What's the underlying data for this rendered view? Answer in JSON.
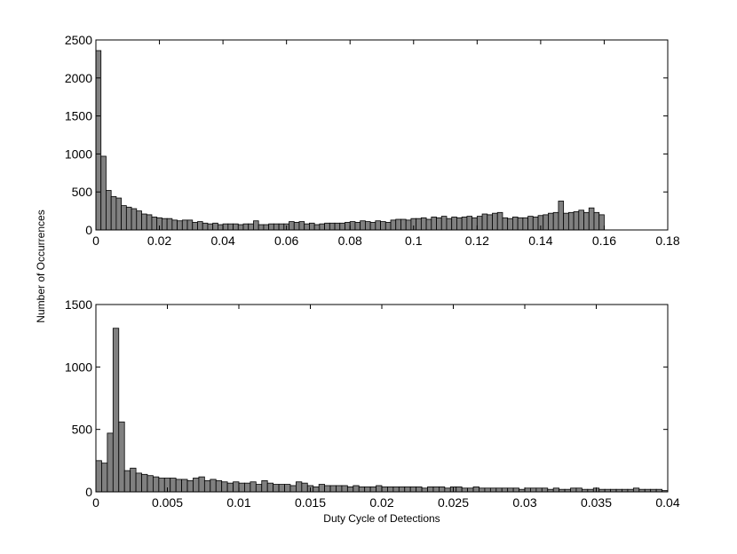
{
  "chart_data": [
    {
      "type": "histogram",
      "bins": [
        0,
        0.0016,
        0.0032,
        0.0048,
        0.0064,
        0.008,
        0.0096,
        0.0112,
        0.0128,
        0.0144,
        0.016,
        0.0176,
        0.0192,
        0.0208,
        0.0224,
        0.024,
        0.0256,
        0.0272,
        0.0288,
        0.0304,
        0.032,
        0.0336,
        0.0352,
        0.0368,
        0.0384,
        0.04,
        0.0416,
        0.0432,
        0.0448,
        0.0464,
        0.048,
        0.0496,
        0.0512,
        0.0528,
        0.0544,
        0.056,
        0.0576,
        0.0592,
        0.0608,
        0.0624,
        0.064,
        0.0656,
        0.0672,
        0.0688,
        0.0704,
        0.072,
        0.0736,
        0.0752,
        0.0768,
        0.0784,
        0.08,
        0.0816,
        0.0832,
        0.0848,
        0.0864,
        0.088,
        0.0896,
        0.0912,
        0.0928,
        0.0944,
        0.096,
        0.0976,
        0.0992,
        0.1008,
        0.1024,
        0.104,
        0.1056,
        0.1072,
        0.1088,
        0.1104,
        0.112,
        0.1136,
        0.1152,
        0.1168,
        0.1184,
        0.12,
        0.1216,
        0.1232,
        0.1248,
        0.1264,
        0.128,
        0.1296,
        0.1312,
        0.1328,
        0.1344,
        0.136,
        0.1376,
        0.1392,
        0.1408,
        0.1424,
        0.144,
        0.1456,
        0.1472,
        0.1488,
        0.1504,
        0.152,
        0.1536,
        0.1552,
        0.1568,
        0.1584,
        0.16
      ],
      "values": [
        2360,
        970,
        520,
        440,
        420,
        320,
        300,
        280,
        250,
        210,
        200,
        170,
        160,
        150,
        150,
        130,
        120,
        130,
        130,
        100,
        110,
        90,
        80,
        90,
        70,
        80,
        80,
        80,
        70,
        80,
        80,
        120,
        70,
        70,
        80,
        80,
        80,
        80,
        110,
        100,
        110,
        80,
        90,
        70,
        80,
        90,
        90,
        90,
        90,
        100,
        110,
        100,
        120,
        110,
        100,
        120,
        110,
        100,
        130,
        140,
        140,
        130,
        150,
        150,
        160,
        140,
        170,
        160,
        180,
        150,
        170,
        160,
        170,
        180,
        160,
        180,
        210,
        200,
        220,
        230,
        160,
        150,
        170,
        160,
        160,
        180,
        170,
        190,
        200,
        220,
        230,
        380,
        220,
        230,
        240,
        260,
        230,
        290,
        230,
        200
      ],
      "color": "#808080",
      "xlim": [
        0,
        0.18
      ],
      "xticks": [
        0,
        0.02,
        0.04,
        0.06,
        0.08,
        0.1,
        0.12,
        0.14,
        0.16,
        0.18
      ],
      "ylim": [
        0,
        2500
      ],
      "yticks": [
        0,
        500,
        1000,
        1500,
        2000,
        2500
      ]
    },
    {
      "type": "histogram",
      "xlabel": "Duty Cycle of Detections",
      "bins": [
        0,
        0.0004,
        0.0008,
        0.0012,
        0.0016,
        0.002,
        0.0024,
        0.0028,
        0.0032,
        0.0036,
        0.004,
        0.0044,
        0.0048,
        0.0052,
        0.0056,
        0.006,
        0.0064,
        0.0068,
        0.0072,
        0.0076,
        0.008,
        0.0084,
        0.0088,
        0.0092,
        0.0096,
        0.01,
        0.0104,
        0.0108,
        0.0112,
        0.0116,
        0.012,
        0.0124,
        0.0128,
        0.0132,
        0.0136,
        0.014,
        0.0144,
        0.0148,
        0.0152,
        0.0156,
        0.016,
        0.0164,
        0.0168,
        0.0172,
        0.0176,
        0.018,
        0.0184,
        0.0188,
        0.0192,
        0.0196,
        0.02,
        0.0204,
        0.0208,
        0.0212,
        0.0216,
        0.022,
        0.0224,
        0.0228,
        0.0232,
        0.0236,
        0.024,
        0.0244,
        0.0248,
        0.0252,
        0.0256,
        0.026,
        0.0264,
        0.0268,
        0.0272,
        0.0276,
        0.028,
        0.0284,
        0.0288,
        0.0292,
        0.0296,
        0.03,
        0.0304,
        0.0308,
        0.0312,
        0.0316,
        0.032,
        0.0324,
        0.0328,
        0.0332,
        0.0336,
        0.034,
        0.0344,
        0.0348,
        0.0352,
        0.0356,
        0.036,
        0.0364,
        0.0368,
        0.0372,
        0.0376,
        0.038,
        0.0384,
        0.0388,
        0.0392,
        0.0396,
        0.04
      ],
      "values": [
        250,
        230,
        470,
        1310,
        560,
        170,
        190,
        150,
        140,
        130,
        120,
        110,
        110,
        110,
        100,
        100,
        90,
        110,
        120,
        90,
        100,
        90,
        80,
        70,
        80,
        70,
        70,
        80,
        60,
        90,
        70,
        60,
        60,
        60,
        50,
        80,
        70,
        50,
        40,
        60,
        50,
        50,
        50,
        50,
        40,
        50,
        40,
        40,
        40,
        50,
        40,
        40,
        40,
        40,
        40,
        40,
        40,
        30,
        40,
        40,
        40,
        30,
        40,
        40,
        30,
        30,
        40,
        30,
        30,
        30,
        30,
        30,
        30,
        30,
        20,
        30,
        30,
        30,
        30,
        20,
        30,
        20,
        20,
        30,
        30,
        20,
        20,
        30,
        20,
        20,
        20,
        20,
        20,
        20,
        30,
        20,
        20,
        20,
        20,
        10
      ],
      "color": "#808080",
      "xlim": [
        0,
        0.04
      ],
      "xticks": [
        0,
        0.005,
        0.01,
        0.015,
        0.02,
        0.025,
        0.03,
        0.035,
        0.04
      ],
      "ylim": [
        0,
        1500
      ],
      "yticks": [
        0,
        500,
        1000,
        1500
      ]
    }
  ],
  "ylabel": "Number of Occurrences"
}
